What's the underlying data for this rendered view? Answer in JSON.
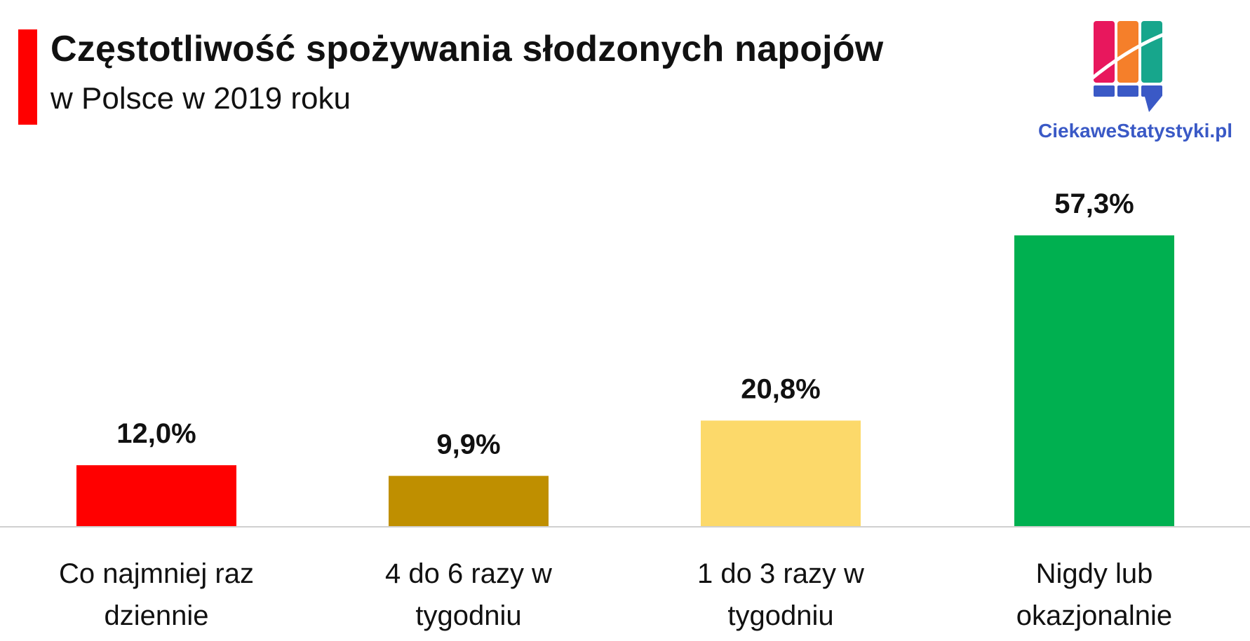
{
  "header": {
    "title": "Częstotliwość spożywania słodzonych napojów",
    "subtitle": "w Polsce w 2019 roku",
    "accent_color": "#ff0000"
  },
  "logo": {
    "text": "CiekaweStatystyki.pl",
    "icon": "bookmark-columns-logo",
    "colors": [
      "#e8175d",
      "#f57f2a",
      "#17a68c",
      "#3a59c6"
    ]
  },
  "chart_data": {
    "type": "bar",
    "categories": [
      [
        "Co najmniej raz",
        "dziennie"
      ],
      [
        "4 do 6 razy w",
        "tygodniu"
      ],
      [
        "1 do 3 razy w",
        "tygodniu"
      ],
      [
        "Nigdy lub",
        "okazjonalnie"
      ]
    ],
    "values": [
      12.0,
      9.9,
      20.8,
      57.3
    ],
    "value_labels": [
      "12,0%",
      "9,9%",
      "20,8%",
      "57,3%"
    ],
    "colors": [
      "#ff0000",
      "#bf8f00",
      "#fcd96a",
      "#00b050"
    ],
    "ylim": [
      0,
      57.3
    ],
    "grid": false,
    "legend": "none",
    "title": "Częstotliwość spożywania słodzonych napojów",
    "subtitle": "w Polsce w 2019 roku"
  }
}
